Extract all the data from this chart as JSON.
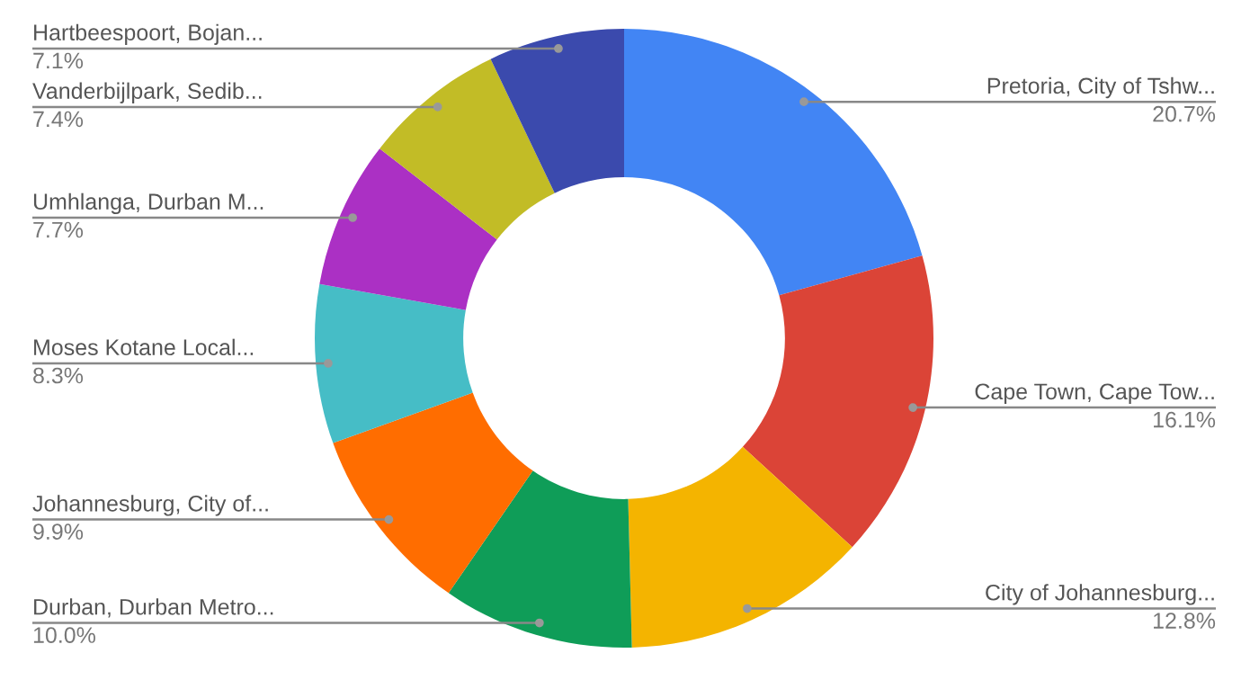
{
  "chart_data": {
    "type": "donut",
    "categories": [
      "Pretoria, City of Tshw...",
      "Cape Town, Cape Tow...",
      "City of Johannesburg...",
      "Durban, Durban Metro...",
      "Johannesburg, City of...",
      "Moses Kotane Local...",
      "Umhlanga, Durban M...",
      "Vanderbijlpark, Sedib...",
      "Hartbeespoort, Bojan..."
    ],
    "values": [
      20.7,
      16.1,
      12.8,
      10.0,
      9.9,
      8.3,
      7.7,
      7.4,
      7.1
    ],
    "value_labels": [
      "20.7%",
      "16.1%",
      "12.8%",
      "10.0%",
      "9.9%",
      "8.3%",
      "7.7%",
      "7.4%",
      "7.1%"
    ],
    "colors": [
      "#4285f4",
      "#db4437",
      "#f4b400",
      "#0f9d58",
      "#ff6d00",
      "#46bdc6",
      "#ab30c4",
      "#c2bc26",
      "#3b4aad"
    ],
    "legend": false
  }
}
